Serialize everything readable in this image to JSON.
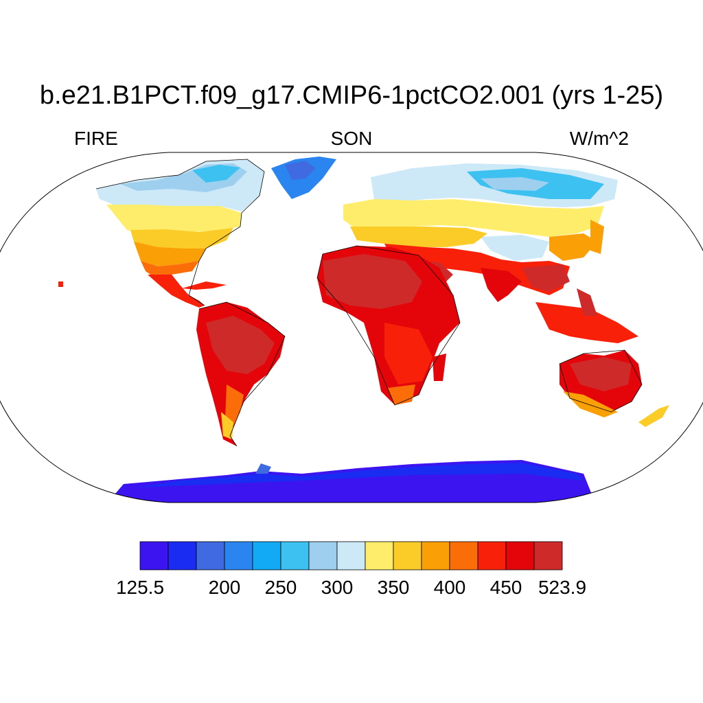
{
  "header": {
    "title": "b.e21.B1PCT.f09_g17.CMIP6-1pctCO2.001 (yrs 1-25)",
    "left": "FIRE",
    "center": "SON",
    "right": "W/m^2"
  },
  "colorbar": {
    "min_label": "125.5",
    "max_label": "523.9",
    "tick_labels": [
      "200",
      "250",
      "300",
      "350",
      "400",
      "450"
    ],
    "colors": [
      "#3b14f0",
      "#1a2bf2",
      "#3f6ae0",
      "#2a85f0",
      "#12aaf5",
      "#3cc1f0",
      "#9ecfee",
      "#cde8f6",
      "#fded6a",
      "#fbcc28",
      "#fb9f07",
      "#fb6d08",
      "#f9200a",
      "#e3050a",
      "#cf2a2a"
    ]
  }
}
